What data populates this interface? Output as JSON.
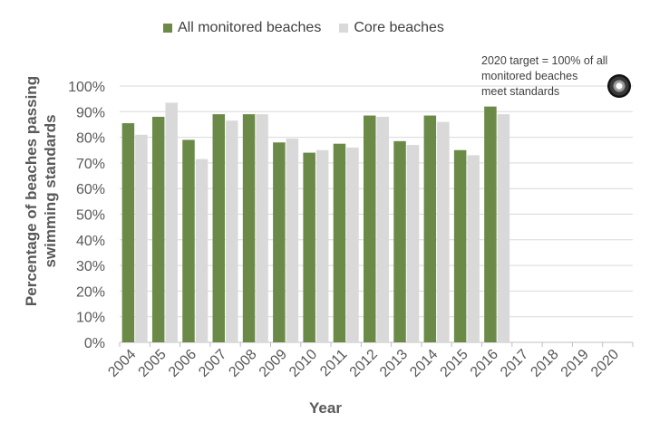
{
  "chart_data": {
    "type": "bar",
    "categories": [
      "2004",
      "2005",
      "2006",
      "2007",
      "2008",
      "2009",
      "2010",
      "2011",
      "2012",
      "2013",
      "2014",
      "2015",
      "2016",
      "2017",
      "2018",
      "2019",
      "2020"
    ],
    "series": [
      {
        "name": "All monitored beaches",
        "color": "#6b8a48",
        "values": [
          85.5,
          88,
          79,
          89,
          89,
          78,
          74,
          77.5,
          88.5,
          78.5,
          88.5,
          75,
          92,
          null,
          null,
          null,
          null
        ]
      },
      {
        "name": "Core beaches",
        "color": "#d9d9d9",
        "values": [
          81,
          93.5,
          71.5,
          86.5,
          89,
          79.5,
          75,
          76,
          88,
          77,
          86,
          73,
          89,
          null,
          null,
          null,
          null
        ]
      }
    ],
    "xlabel": "Year",
    "ylabel": "Percentage of beaches passing swimming standards",
    "ylim": [
      0,
      100
    ],
    "yticks": [
      "0%",
      "10%",
      "20%",
      "30%",
      "40%",
      "50%",
      "60%",
      "70%",
      "80%",
      "90%",
      "100%"
    ],
    "grid": true,
    "legend_position": "top",
    "annotation": "2020 target = 100% of all\nmonitored  beaches\nmeet standards"
  }
}
